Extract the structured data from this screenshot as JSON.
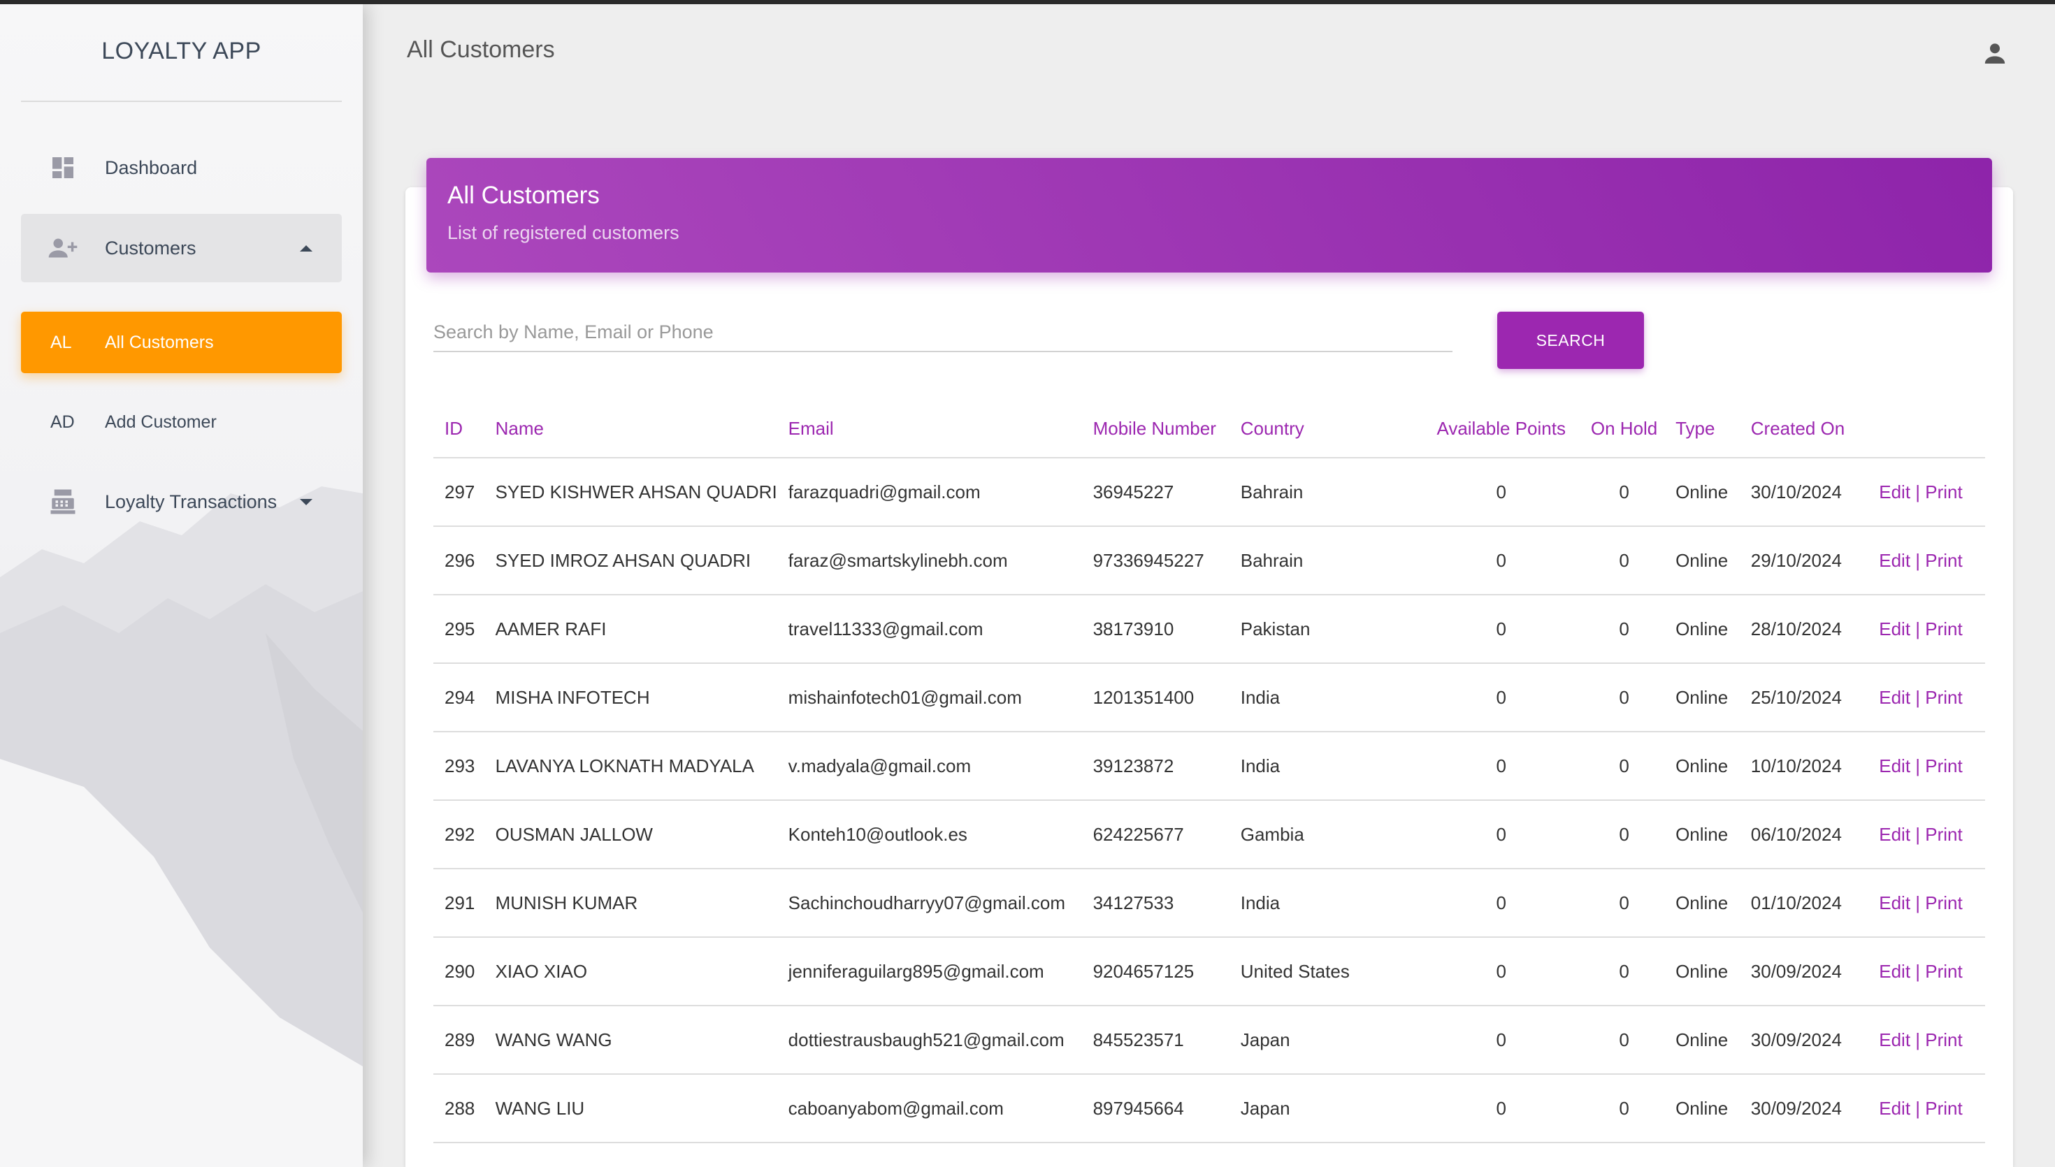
{
  "app": {
    "name": "LOYALTY APP"
  },
  "sidebar": {
    "items": [
      {
        "label": "Dashboard",
        "icon": "dashboard-icon"
      },
      {
        "label": "Customers",
        "icon": "person-add-icon"
      },
      {
        "label": "All Customers",
        "abbr": "AL"
      },
      {
        "label": "Add Customer",
        "abbr": "AD"
      },
      {
        "label": "Loyalty Transactions",
        "icon": "cash-register-icon"
      }
    ]
  },
  "header": {
    "title": "All Customers",
    "user_icon": "account-icon"
  },
  "card": {
    "title": "All Customers",
    "subtitle": "List of registered customers"
  },
  "search": {
    "placeholder": "Search by Name, Email or Phone",
    "value": "",
    "button_label": "SEARCH"
  },
  "table": {
    "columns": [
      "ID",
      "Name",
      "Email",
      "Mobile Number",
      "Country",
      "Available Points",
      "On Hold",
      "Type",
      "Created On",
      ""
    ],
    "edit_label": "Edit",
    "separator": " | ",
    "print_label": "Print",
    "rows": [
      {
        "id": "297",
        "name": "SYED KISHWER AHSAN QUADRI",
        "email": "farazquadri@gmail.com",
        "mobile": "36945227",
        "country": "Bahrain",
        "points": "0",
        "hold": "0",
        "type": "Online",
        "created": "30/10/2024"
      },
      {
        "id": "296",
        "name": "SYED IMROZ AHSAN QUADRI",
        "email": "faraz@smartskylinebh.com",
        "mobile": "97336945227",
        "country": "Bahrain",
        "points": "0",
        "hold": "0",
        "type": "Online",
        "created": "29/10/2024"
      },
      {
        "id": "295",
        "name": "AAMER RAFI",
        "email": "travel11333@gmail.com",
        "mobile": "38173910",
        "country": "Pakistan",
        "points": "0",
        "hold": "0",
        "type": "Online",
        "created": "28/10/2024"
      },
      {
        "id": "294",
        "name": "MISHA INFOTECH",
        "email": "mishainfotech01@gmail.com",
        "mobile": "1201351400",
        "country": "India",
        "points": "0",
        "hold": "0",
        "type": "Online",
        "created": "25/10/2024"
      },
      {
        "id": "293",
        "name": "LAVANYA LOKNATH MADYALA",
        "email": "v.madyala@gmail.com",
        "mobile": "39123872",
        "country": "India",
        "points": "0",
        "hold": "0",
        "type": "Online",
        "created": "10/10/2024"
      },
      {
        "id": "292",
        "name": "OUSMAN JALLOW",
        "email": "Konteh10@outlook.es",
        "mobile": "624225677",
        "country": "Gambia",
        "points": "0",
        "hold": "0",
        "type": "Online",
        "created": "06/10/2024"
      },
      {
        "id": "291",
        "name": "MUNISH KUMAR",
        "email": "Sachinchoudharryy07@gmail.com",
        "mobile": "34127533",
        "country": "India",
        "points": "0",
        "hold": "0",
        "type": "Online",
        "created": "01/10/2024"
      },
      {
        "id": "290",
        "name": "XIAO XIAO",
        "email": "jenniferaguilarg895@gmail.com",
        "mobile": "9204657125",
        "country": "United States",
        "points": "0",
        "hold": "0",
        "type": "Online",
        "created": "30/09/2024"
      },
      {
        "id": "289",
        "name": "WANG WANG",
        "email": "dottiestrausbaugh521@gmail.com",
        "mobile": "845523571",
        "country": "Japan",
        "points": "0",
        "hold": "0",
        "type": "Online",
        "created": "30/09/2024"
      },
      {
        "id": "288",
        "name": "WANG LIU",
        "email": "caboanyabom@gmail.com",
        "mobile": "897945664",
        "country": "Japan",
        "points": "0",
        "hold": "0",
        "type": "Online",
        "created": "30/09/2024"
      }
    ]
  },
  "colors": {
    "primary": "#9c27b0",
    "accent": "#ff9800",
    "text": "#3c4858"
  }
}
